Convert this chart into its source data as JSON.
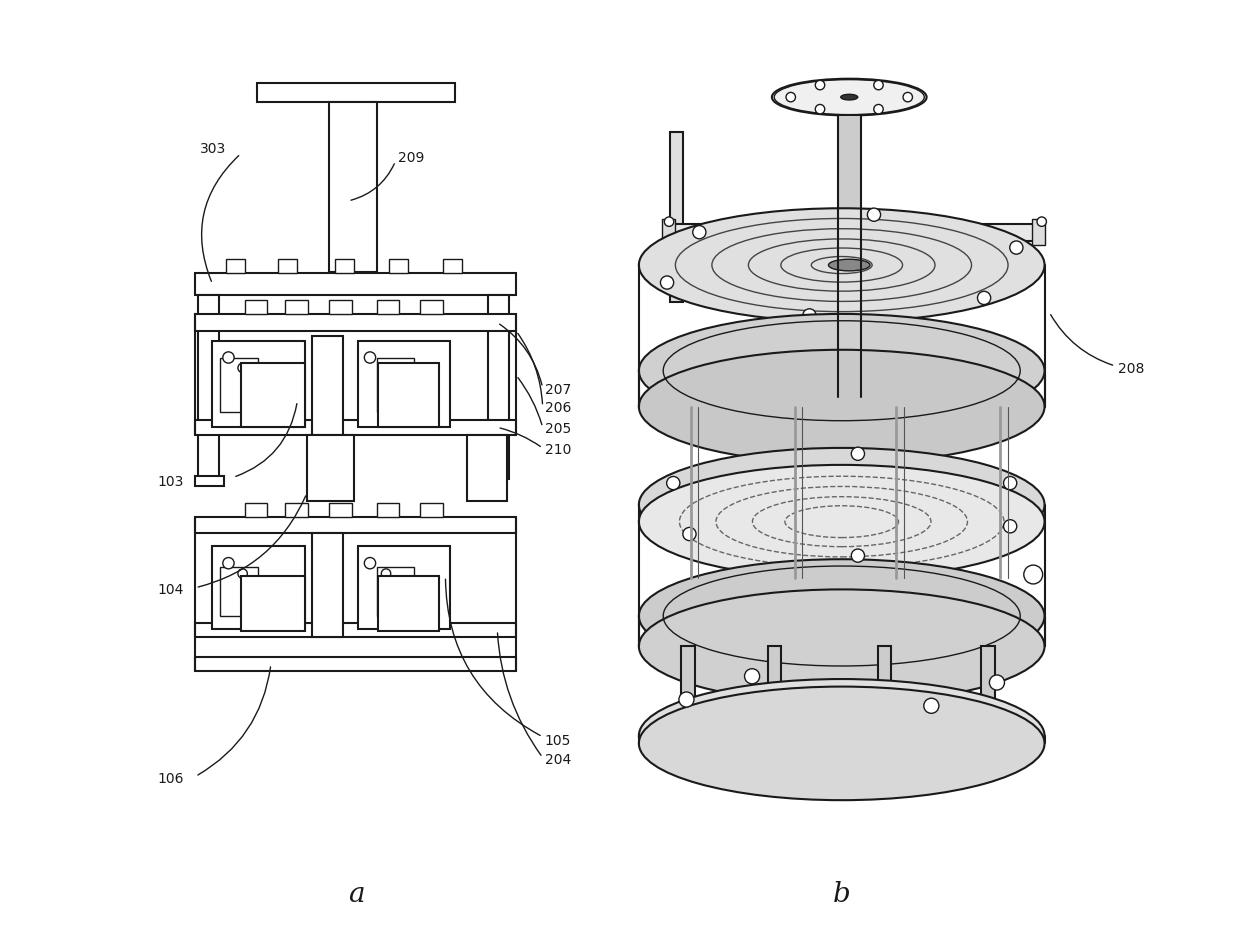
{
  "bg_color": "#ffffff",
  "line_color": "#1a1a1a",
  "fig_width": 12.4,
  "fig_height": 9.49
}
